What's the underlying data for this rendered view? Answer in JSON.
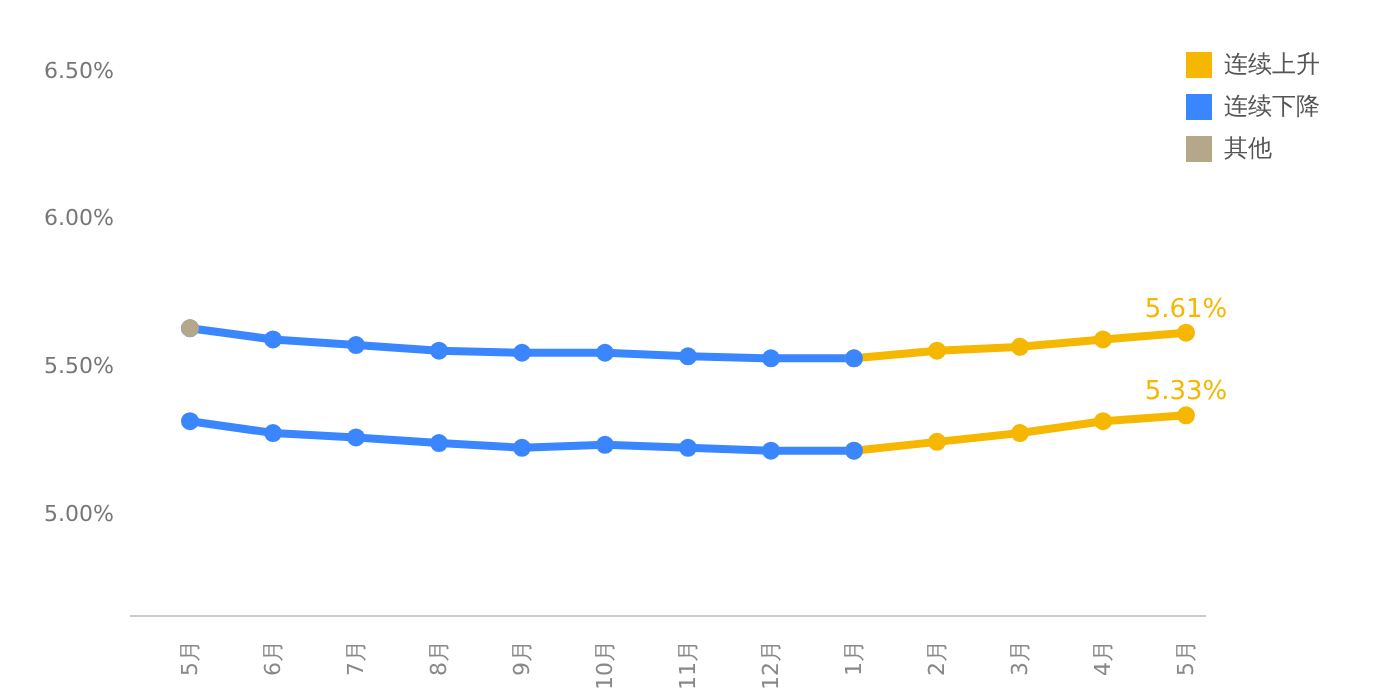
{
  "chart_data": {
    "type": "line",
    "categories": [
      "5月",
      "6月",
      "7月",
      "8月",
      "9月",
      "10月",
      "11月",
      "12月",
      "1月",
      "2月",
      "3月",
      "4月",
      "5月"
    ],
    "series": [
      {
        "name": "连续上升",
        "color": "#f5b700",
        "values": [
          null,
          null,
          null,
          null,
          null,
          null,
          null,
          null,
          5.523,
          5.549,
          5.562,
          5.587,
          5.61
        ],
        "value_labels": [
          null,
          null,
          null,
          null,
          null,
          null,
          null,
          null,
          null,
          null,
          null,
          null,
          "5.61%"
        ]
      },
      {
        "color": "#f5b700",
        "values": [
          null,
          null,
          null,
          null,
          null,
          null,
          null,
          null,
          5.21,
          5.24,
          5.27,
          5.31,
          5.33
        ],
        "value_labels": [
          null,
          null,
          null,
          null,
          null,
          null,
          null,
          null,
          null,
          null,
          null,
          null,
          "5.33%"
        ]
      },
      {
        "name": "连续下降",
        "color": "#3a86ff",
        "values": [
          5.625,
          5.587,
          5.568,
          5.549,
          5.542,
          5.542,
          5.53,
          5.523,
          5.523,
          null,
          null,
          null,
          null
        ]
      },
      {
        "color": "#3a86ff",
        "values": [
          5.31,
          5.27,
          5.255,
          5.236,
          5.22,
          5.23,
          5.22,
          5.21,
          5.21,
          null,
          null,
          null,
          null
        ]
      },
      {
        "name": "其他",
        "type": "scatter",
        "color": "#b5a78a",
        "values": [
          5.625,
          null,
          null,
          null,
          null,
          null,
          null,
          null,
          null,
          null,
          null,
          null,
          null
        ]
      }
    ],
    "ylim": [
      4.65,
      6.5
    ],
    "yticks": [
      {
        "value": 5,
        "label": "5.00%"
      },
      {
        "value": 5.5,
        "label": "5.50%"
      },
      {
        "value": 6,
        "label": "6.00%"
      },
      {
        "value": 6.5,
        "label": "6.50%"
      }
    ],
    "grid": false,
    "legend": "top right",
    "marker": "circle",
    "line_style": "solid"
  }
}
